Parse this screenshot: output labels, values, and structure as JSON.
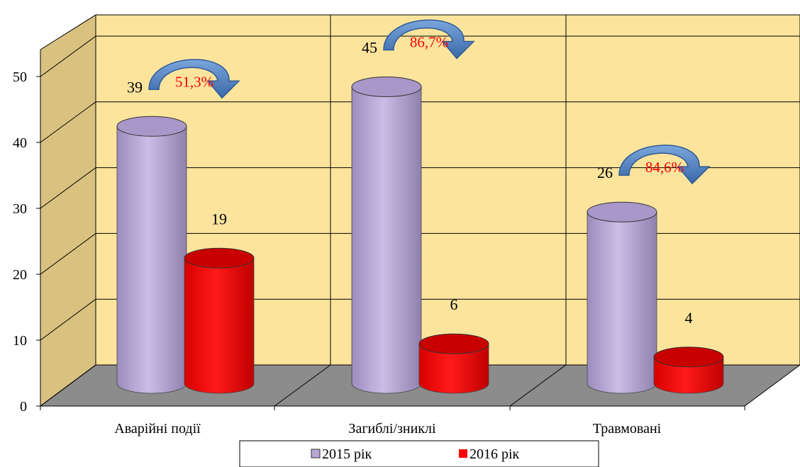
{
  "chart_data": {
    "type": "bar",
    "categories": [
      "Аварійні події",
      "Загиблі/зниклі",
      "Травмовані"
    ],
    "series": [
      {
        "name": "2015 рік",
        "values": [
          39,
          45,
          26
        ],
        "color": "#b7a7d4"
      },
      {
        "name": "2016 рік",
        "values": [
          19,
          6,
          4
        ],
        "color": "#ff0000"
      }
    ],
    "ylim": [
      0,
      50
    ],
    "yticks": [
      "0",
      "10",
      "20",
      "30",
      "40",
      "50"
    ],
    "change_labels": [
      "51,3%",
      "86,7%",
      "84,6%"
    ],
    "grid": true,
    "legend": "bottom",
    "colors": {
      "wall": "#fde49d",
      "side_wall": "#d9c17f",
      "floor": "#8c8c8c",
      "arrow": "#4a7cc0"
    }
  }
}
